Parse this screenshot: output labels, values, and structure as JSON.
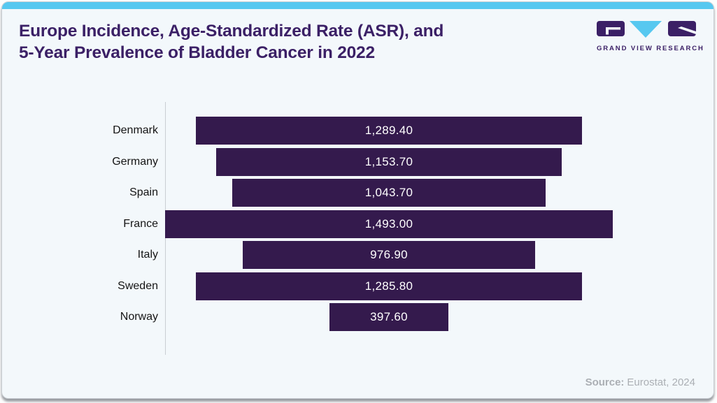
{
  "header": {
    "title_line1": "Europe Incidence, Age-Standardized Rate (ASR), and",
    "title_line2": "5-Year Prevalence of Bladder Cancer in 2022",
    "logo_text": "GRAND VIEW RESEARCH"
  },
  "chart_data": {
    "type": "bar",
    "orientation": "horizontal-centered",
    "title": "Europe Incidence, Age-Standardized Rate (ASR), and 5-Year Prevalence of Bladder Cancer in 2022",
    "categories": [
      "Denmark",
      "Germany",
      "Spain",
      "France",
      "Italy",
      "Sweden",
      "Norway"
    ],
    "values": [
      1289.4,
      1153.7,
      1043.7,
      1493.0,
      976.9,
      1285.8,
      397.6
    ],
    "value_labels": [
      "1,289.40",
      "1,153.70",
      "1,043.70",
      "1,493.00",
      "976.90",
      "1,285.80",
      "397.60"
    ],
    "xlim": [
      0,
      1493
    ],
    "grid": false,
    "legend": false,
    "bar_color": "#341a4d",
    "value_text_color": "#ffffff"
  },
  "footer": {
    "source_label": "Source:",
    "source_value": "Eurostat, 2024"
  },
  "colors": {
    "accent_blue": "#57c8f0",
    "brand_purple": "#3b2066",
    "bar_purple": "#341a4d",
    "card_background": "#f3f8fb",
    "axis_line": "#c9ced3",
    "label_text": "#141414",
    "source_text": "#abafb4"
  }
}
